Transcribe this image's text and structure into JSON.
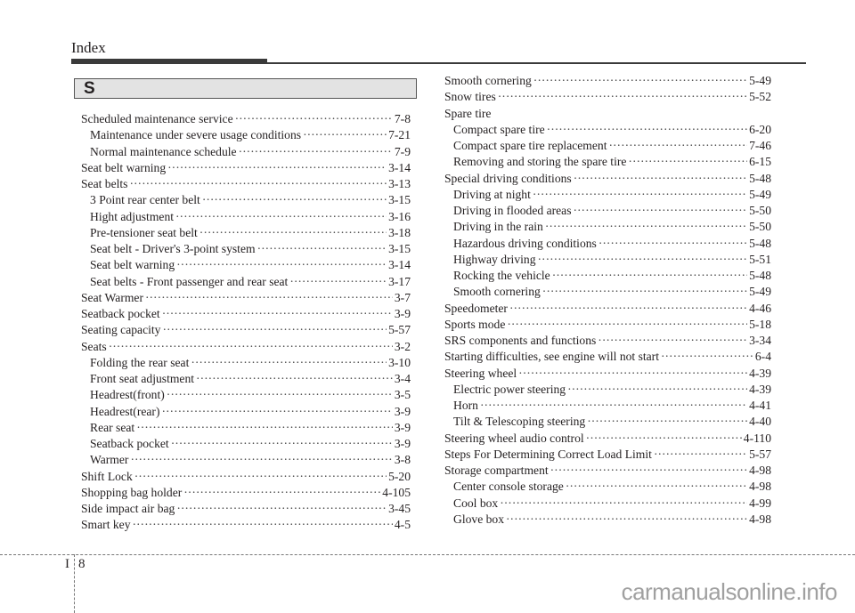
{
  "header": {
    "title": "Index"
  },
  "section_letter": "S",
  "left": [
    {
      "label": "Scheduled maintenance service",
      "page": "7-8",
      "sub": false
    },
    {
      "label": "Maintenance under severe usage conditions",
      "page": "7-21",
      "sub": true
    },
    {
      "label": "Normal maintenance schedule",
      "page": "7-9",
      "sub": true
    },
    {
      "label": "Seat belt warning",
      "page": "3-14",
      "sub": false
    },
    {
      "label": "Seat belts",
      "page": "3-13",
      "sub": false
    },
    {
      "label": "3 Point rear center belt",
      "page": "3-15",
      "sub": true
    },
    {
      "label": "Hight adjustment",
      "page": "3-16",
      "sub": true
    },
    {
      "label": "Pre-tensioner seat belt",
      "page": "3-18",
      "sub": true
    },
    {
      "label": "Seat belt - Driver's 3-point system",
      "page": "3-15",
      "sub": true
    },
    {
      "label": "Seat belt warning",
      "page": "3-14",
      "sub": true
    },
    {
      "label": "Seat belts - Front passenger and rear seat",
      "page": "3-17",
      "sub": true
    },
    {
      "label": "Seat Warmer",
      "page": "3-7",
      "sub": false
    },
    {
      "label": "Seatback pocket",
      "page": "3-9",
      "sub": false
    },
    {
      "label": "Seating capacity",
      "page": "5-57",
      "sub": false
    },
    {
      "label": "Seats",
      "page": "3-2",
      "sub": false
    },
    {
      "label": "Folding the rear seat",
      "page": "3-10",
      "sub": true
    },
    {
      "label": "Front seat adjustment",
      "page": "3-4",
      "sub": true
    },
    {
      "label": "Headrest(front)",
      "page": "3-5",
      "sub": true
    },
    {
      "label": "Headrest(rear)",
      "page": "3-9",
      "sub": true
    },
    {
      "label": "Rear seat",
      "page": "3-9",
      "sub": true
    },
    {
      "label": "Seatback pocket",
      "page": "3-9",
      "sub": true
    },
    {
      "label": "Warmer",
      "page": "3-8",
      "sub": true
    },
    {
      "label": "Shift Lock",
      "page": "5-20",
      "sub": false
    },
    {
      "label": "Shopping bag holder",
      "page": "4-105",
      "sub": false
    },
    {
      "label": "Side impact air bag",
      "page": "3-45",
      "sub": false
    },
    {
      "label": "Smart key",
      "page": "4-5",
      "sub": false
    }
  ],
  "right": [
    {
      "label": "Smooth cornering",
      "page": "5-49",
      "sub": false
    },
    {
      "label": "Snow tires",
      "page": "5-52",
      "sub": false
    },
    {
      "label": "Spare tire",
      "page": "",
      "sub": false
    },
    {
      "label": "Compact spare tire",
      "page": "6-20",
      "sub": true
    },
    {
      "label": "Compact spare tire replacement",
      "page": "7-46",
      "sub": true
    },
    {
      "label": "Removing and storing the spare tire",
      "page": "6-15",
      "sub": true
    },
    {
      "label": "Special driving conditions",
      "page": "5-48",
      "sub": false
    },
    {
      "label": "Driving at night",
      "page": "5-49",
      "sub": true
    },
    {
      "label": "Driving in flooded areas",
      "page": "5-50",
      "sub": true
    },
    {
      "label": "Driving in the rain",
      "page": "5-50",
      "sub": true
    },
    {
      "label": "Hazardous driving conditions",
      "page": "5-48",
      "sub": true
    },
    {
      "label": "Highway driving",
      "page": "5-51",
      "sub": true
    },
    {
      "label": "Rocking the vehicle",
      "page": "5-48",
      "sub": true
    },
    {
      "label": "Smooth cornering",
      "page": "5-49",
      "sub": true
    },
    {
      "label": "Speedometer",
      "page": "4-46",
      "sub": false
    },
    {
      "label": "Sports mode",
      "page": "5-18",
      "sub": false
    },
    {
      "label": "SRS components and functions",
      "page": "3-34",
      "sub": false
    },
    {
      "label": "Starting difficulties, see engine will not start",
      "page": "6-4",
      "sub": false
    },
    {
      "label": "Steering wheel",
      "page": "4-39",
      "sub": false
    },
    {
      "label": "Electric power steering",
      "page": "4-39",
      "sub": true
    },
    {
      "label": "Horn",
      "page": "4-41",
      "sub": true
    },
    {
      "label": "Tilt & Telescoping steering",
      "page": "4-40",
      "sub": true
    },
    {
      "label": "Steering wheel audio control",
      "page": "4-110",
      "sub": false
    },
    {
      "label": "Steps For Determining Correct Load Limit",
      "page": "5-57",
      "sub": false
    },
    {
      "label": "Storage compartment",
      "page": "4-98",
      "sub": false
    },
    {
      "label": "Center console storage",
      "page": "4-98",
      "sub": true
    },
    {
      "label": "Cool box",
      "page": "4-99",
      "sub": true
    },
    {
      "label": "Glove box",
      "page": "4-98",
      "sub": true
    }
  ],
  "footer": {
    "section": "I",
    "page": "8",
    "watermark": "carmanualsonline.info"
  }
}
